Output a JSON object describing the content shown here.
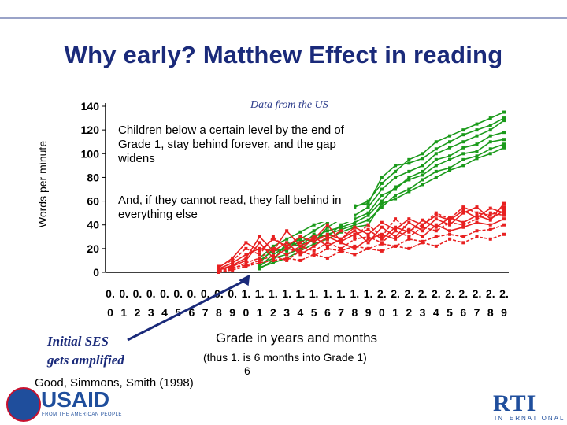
{
  "slide": {
    "title": "Why early? Matthew Effect in reading",
    "source_note": "Data from the US",
    "note1": "Children below a certain level by the end of Grade 1, stay behind forever, and the gap widens",
    "note2": "And, if they cannot read, they fall behind in everything else",
    "ses_line1": "Initial SES",
    "ses_line2": "gets amplified",
    "citation": "Good, Simmons, Smith (1998)",
    "usaid_text": "USAID",
    "usaid_sub": "FROM THE AMERICAN PEOPLE",
    "rti_text": "RTI",
    "rti_sub": "INTERNATIONAL"
  },
  "colors": {
    "title": "#1a2a7a",
    "high_group": "#1a9a1a",
    "low_group": "#e82020",
    "arrow": "#1a2a7a"
  },
  "chart_data": {
    "type": "line",
    "ylabel": "Words per minute",
    "xlabel": "Grade in years and months",
    "xlabel_sub": "(thus 1. is 6 months into Grade 1)",
    "xlabel_sub2": "6",
    "yticks": [
      0,
      20,
      40,
      60,
      80,
      100,
      120,
      140
    ],
    "ylim": [
      0,
      140
    ],
    "categories_top": [
      "0.",
      "0.",
      "0.",
      "0.",
      "0.",
      "0.",
      "0.",
      "0.",
      "0.",
      "0.",
      "1.",
      "1.",
      "1.",
      "1.",
      "1.",
      "1.",
      "1.",
      "1.",
      "1.",
      "1.",
      "2.",
      "2.",
      "2.",
      "2.",
      "2.",
      "2.",
      "2.",
      "2.",
      "2.",
      "2."
    ],
    "categories_bottom": [
      "0",
      "1",
      "2",
      "3",
      "4",
      "5",
      "6",
      "7",
      "8",
      "9",
      "0",
      "1",
      "2",
      "3",
      "4",
      "5",
      "6",
      "7",
      "8",
      "9",
      "0",
      "1",
      "2",
      "3",
      "4",
      "5",
      "6",
      "7",
      "8",
      "9"
    ],
    "series": [
      {
        "group": "high",
        "values": [
          null,
          null,
          null,
          null,
          null,
          null,
          null,
          null,
          null,
          null,
          null,
          5,
          15,
          22,
          28,
          35,
          42,
          50,
          55,
          60,
          75,
          85,
          95,
          100,
          110,
          115,
          120,
          125,
          130,
          135
        ]
      },
      {
        "group": "high",
        "values": [
          null,
          null,
          null,
          null,
          null,
          null,
          null,
          null,
          null,
          null,
          null,
          8,
          20,
          18,
          30,
          25,
          38,
          45,
          48,
          55,
          70,
          80,
          85,
          90,
          100,
          105,
          110,
          115,
          120,
          128
        ]
      },
      {
        "group": "high",
        "values": [
          null,
          null,
          null,
          null,
          null,
          null,
          null,
          null,
          null,
          null,
          null,
          3,
          10,
          25,
          22,
          32,
          30,
          40,
          45,
          50,
          65,
          70,
          80,
          85,
          95,
          98,
          105,
          108,
          115,
          118
        ]
      },
      {
        "group": "high",
        "values": [
          null,
          null,
          null,
          null,
          null,
          null,
          null,
          null,
          null,
          null,
          null,
          10,
          18,
          20,
          26,
          30,
          35,
          38,
          42,
          48,
          60,
          72,
          78,
          82,
          90,
          95,
          100,
          102,
          110,
          112
        ]
      },
      {
        "group": "high",
        "values": [
          null,
          null,
          null,
          null,
          null,
          null,
          null,
          null,
          null,
          null,
          null,
          6,
          12,
          15,
          20,
          28,
          32,
          36,
          40,
          44,
          55,
          65,
          70,
          78,
          85,
          88,
          95,
          98,
          104,
          108
        ]
      },
      {
        "group": "high",
        "values": [
          null,
          null,
          null,
          null,
          null,
          null,
          null,
          null,
          null,
          null,
          null,
          12,
          22,
          28,
          34,
          40,
          44,
          52,
          56,
          58,
          80,
          90,
          92,
          96,
          104,
          110,
          116,
          120,
          124,
          130
        ]
      },
      {
        "group": "high",
        "values": [
          null,
          null,
          null,
          null,
          null,
          null,
          null,
          null,
          null,
          null,
          null,
          4,
          8,
          12,
          18,
          24,
          28,
          34,
          38,
          40,
          58,
          62,
          68,
          74,
          80,
          86,
          90,
          96,
          100,
          105
        ]
      },
      {
        "group": "low",
        "values": [
          null,
          null,
          null,
          null,
          null,
          null,
          null,
          null,
          5,
          10,
          20,
          15,
          30,
          20,
          25,
          30,
          28,
          35,
          30,
          40,
          30,
          45,
          35,
          40,
          50,
          45,
          55,
          50,
          48,
          55
        ]
      },
      {
        "group": "low",
        "values": [
          null,
          null,
          null,
          null,
          null,
          null,
          null,
          null,
          2,
          5,
          10,
          25,
          12,
          20,
          18,
          30,
          22,
          28,
          35,
          25,
          38,
          30,
          42,
          35,
          45,
          40,
          50,
          55,
          45,
          52
        ]
      },
      {
        "group": "low",
        "values": [
          null,
          null,
          null,
          null,
          null,
          null,
          null,
          null,
          0,
          3,
          8,
          12,
          20,
          15,
          22,
          18,
          25,
          20,
          28,
          30,
          25,
          35,
          30,
          38,
          35,
          42,
          40,
          45,
          50,
          48
        ]
      },
      {
        "group": "low",
        "values": [
          null,
          null,
          null,
          null,
          null,
          null,
          null,
          null,
          3,
          8,
          15,
          20,
          18,
          25,
          15,
          22,
          30,
          25,
          20,
          28,
          32,
          28,
          36,
          30,
          40,
          35,
          38,
          42,
          40,
          45
        ]
      },
      {
        "group": "low",
        "values": [
          null,
          null,
          null,
          null,
          null,
          null,
          null,
          null,
          1,
          4,
          6,
          10,
          14,
          10,
          18,
          14,
          20,
          18,
          22,
          20,
          24,
          22,
          28,
          26,
          30,
          32,
          30,
          35,
          36,
          40
        ]
      },
      {
        "group": "low",
        "values": [
          null,
          null,
          null,
          null,
          null,
          null,
          null,
          null,
          4,
          12,
          25,
          18,
          28,
          22,
          30,
          26,
          32,
          28,
          38,
          32,
          42,
          36,
          45,
          40,
          48,
          44,
          52,
          46,
          54,
          50
        ]
      },
      {
        "group": "low",
        "values": [
          null,
          null,
          null,
          null,
          null,
          null,
          null,
          null,
          0,
          2,
          5,
          8,
          10,
          12,
          10,
          15,
          12,
          18,
          15,
          20,
          18,
          22,
          20,
          25,
          22,
          28,
          25,
          30,
          28,
          32
        ]
      },
      {
        "group": "low",
        "values": [
          null,
          null,
          null,
          null,
          null,
          null,
          null,
          null,
          2,
          6,
          12,
          30,
          18,
          35,
          22,
          28,
          40,
          26,
          32,
          36,
          28,
          38,
          34,
          44,
          38,
          46,
          42,
          48,
          44,
          58
        ]
      }
    ]
  }
}
